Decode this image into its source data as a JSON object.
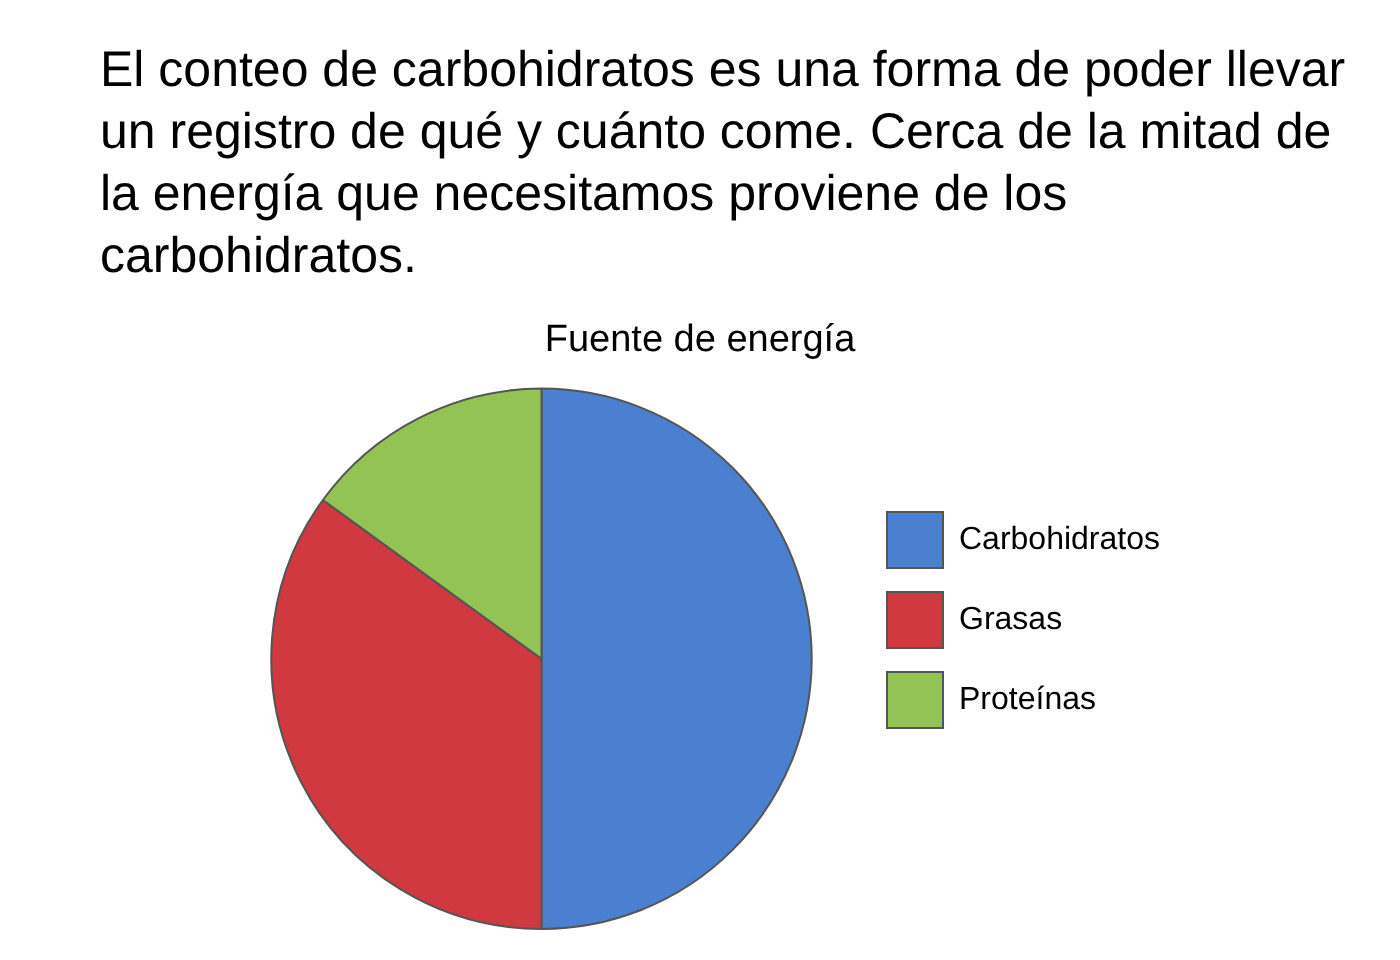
{
  "chart_data": {
    "type": "pie",
    "subtitle": "El conteo de carbohidratos es una forma de poder llevar un registro de qué y cuánto come. Cerca de la mitad de la energía que necesitamos proviene de los carbohidratos.",
    "title": "Fuente de energía",
    "categories": [
      "Carbohidratos",
      "Grasas",
      "Proteínas"
    ],
    "values": [
      50,
      35,
      15
    ],
    "colors": [
      "#4a80cf",
      "#d0393f",
      "#93c354"
    ],
    "legend": "right"
  }
}
